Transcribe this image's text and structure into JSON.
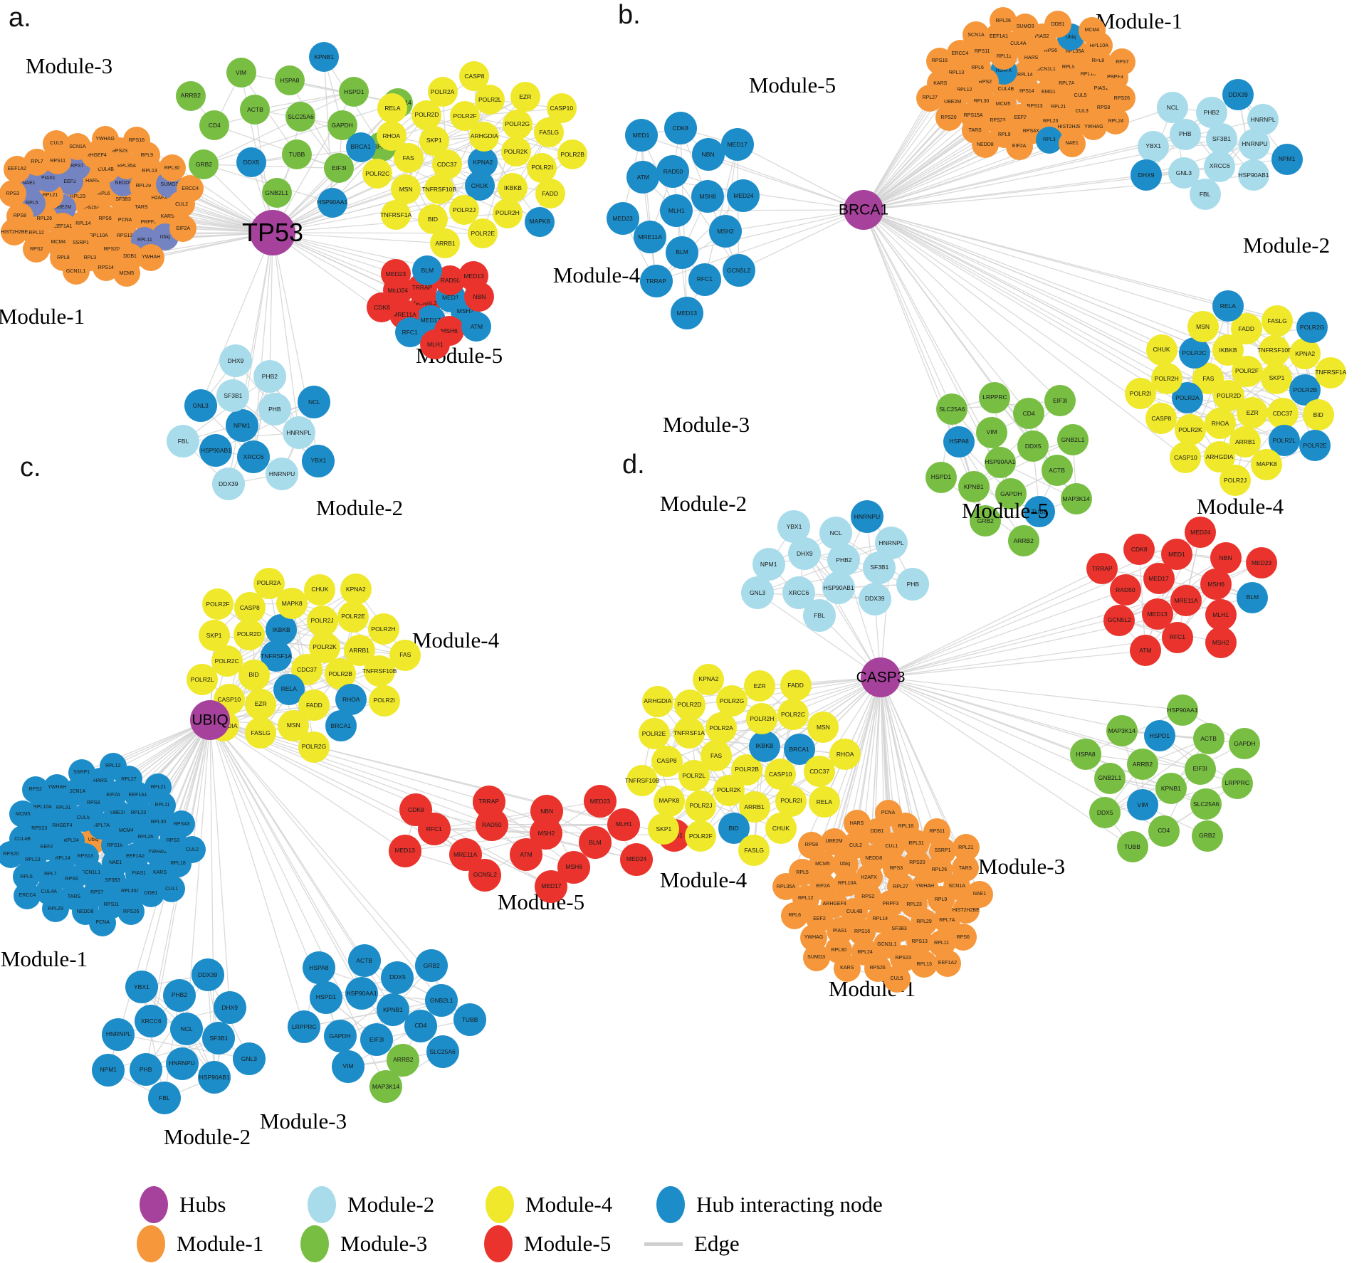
{
  "colors": {
    "hub": "#A6429C",
    "module1": "#F5973A",
    "module2": "#A9DCEB",
    "module3": "#78BE43",
    "module4": "#EFE82B",
    "module5": "#E9332C",
    "hubnode": "#1C8DC9",
    "slate": "#7483C1",
    "edge": "#D3D3D3"
  },
  "node_prefix_legend": {
    "!": "hub-interacting-node-color",
    "~": "slate-blue-color",
    "^": "module1-orange-color"
  },
  "legend": {
    "items": [
      {
        "key": "hub",
        "label": "Hubs"
      },
      {
        "key": "module2",
        "label": "Module-2"
      },
      {
        "key": "module4",
        "label": "Module-4"
      },
      {
        "key": "hubnode",
        "label": "Hub interacting node"
      },
      {
        "key": "module1",
        "label": "Module-1"
      },
      {
        "key": "module3",
        "label": "Module-3"
      },
      {
        "key": "module5",
        "label": "Module-5"
      },
      {
        "key": "edge",
        "label": "Edge"
      }
    ]
  },
  "panels": [
    {
      "id": "a",
      "letter": "a.",
      "hub": "TP53",
      "modules": [
        {
          "key": "m1",
          "name": "Module-1",
          "color": "module1",
          "nodes": [
            "RPS15A",
            "RPL6",
            "RPS6",
            "RPL23",
            "SF3B3",
            "RPL14",
            "HARS",
            "PCNA",
            "~UBE2M",
            "~NEDD8",
            "RPL10A",
            "~EEF2",
            "TARS",
            "EEF1A1",
            "CUL4B",
            "RPS13",
            "RPL21",
            "RPL29",
            "SSRP1",
            "~RPS7",
            "PRPF3",
            "RPL26",
            "RPL35A",
            "RPS20",
            "~PIAS1",
            "H2AFX",
            "MCM4",
            "ARHGEF4",
            "~RPL11",
            "~RPL5",
            "RPL13",
            "RPL3",
            "RPS11",
            "KARS",
            "RPL12",
            "RPS23",
            "DDB1",
            "~NAE1",
            "~SUMO3",
            "RPL8",
            "SCN1A",
            "~Ubiq",
            "RPS8",
            "RPL9",
            "RPS14",
            "RPL7",
            "CUL2",
            "RPS2",
            "YWHAG",
            "YWHAH",
            "RPS3",
            "RPL30",
            "GCN1L1",
            "CUL5",
            "EIF2A",
            "HIST2H2BE",
            "RPS16",
            "MCM5",
            "EEF1A2",
            "ERCC4"
          ]
        },
        {
          "key": "m2",
          "name": "Module-2",
          "color": "module2",
          "nodes": [
            "!NPM1",
            "PHB",
            "!XRCC6",
            "SF3B1",
            "HNRNPL",
            "!HSP90AB1",
            "PHB2",
            "HNRNPU",
            "!GNL3",
            "!NCL",
            "DDX39",
            "DHX9",
            "!YBX1",
            "FBL"
          ]
        },
        {
          "key": "m3",
          "name": "Module-3",
          "color": "module3",
          "nodes": [
            "SLC25A6",
            "TUBB",
            "ACTB",
            "GAPDH",
            "!DDX5",
            "HSPA8",
            "EIF3I",
            "CD4",
            "HSPD1",
            "GNB2L1",
            "VIM",
            "LRPPRC",
            "GRB2",
            "!KPNB1",
            "!HSP90AA1",
            "ARRB2",
            "MAP3K14"
          ]
        },
        {
          "key": "m4",
          "name": "Module-4",
          "color": "module4",
          "nodes": [
            "!KPNA2",
            "CDC37",
            "ARHGDIA",
            "!CHUK",
            "SKP1",
            "POLR2K",
            "TNFRSF10B",
            "POLR2F",
            "IKBKB",
            "FAS",
            "POLR2G",
            "POLR2J",
            "POLR2D",
            "POLR2I",
            "MSN",
            "POLR2L",
            "POLR2H",
            "RHOA",
            "FASLG",
            "BID",
            "POLR2A",
            "FADD",
            "POLR2C",
            "EZR",
            "POLR2E",
            "RELA",
            "POLR2B",
            "TNFRSF1A",
            "CASP8",
            "!MAPK8",
            "!BRCA1",
            "CASP10",
            "ARRB1"
          ]
        },
        {
          "key": "m5",
          "name": "Module-5",
          "color": "module5",
          "nodes": [
            "GCN5L2",
            "!MED1",
            "!MED17",
            "TRRAP",
            "!MSH2",
            "MRE11A",
            "RAD50",
            "MSH6",
            "MED24",
            "NBN",
            "!RFC1",
            "!BLM",
            "!ATM",
            "CDK8",
            "MED13",
            "MLH1",
            "MED23"
          ]
        }
      ]
    },
    {
      "id": "b",
      "letter": "b.",
      "hub": "BRCA1",
      "modules": [
        {
          "key": "m1",
          "name": "Module-1",
          "color": "module1",
          "nodes": [
            "RPS14",
            "RPL14",
            "EMG1",
            "CUL4B",
            "GCN1L1",
            "RPS13",
            "!H2AFX",
            "RPL7A",
            "MCM5",
            "HARS",
            "RPL21",
            "RPS2",
            "RPL5",
            "EEF2",
            "RPL11",
            "CUL5",
            "RPL30",
            "RPS6",
            "RPL23",
            "RPL6",
            "RPL18",
            "RPS23",
            "CUL4A",
            "CUL3",
            "RPL12",
            "RPL35A",
            "RPS4X",
            "RPS11",
            "PIAS1",
            "RPS15A",
            "PIAS2",
            "HIST2H2BE",
            "RPL13",
            "RPL8",
            "RPL9",
            "EEF1A1",
            "RPS8",
            "UBE2M",
            "!Ubiq",
            "!RPL3",
            "ERCC4",
            "PRPF3",
            "TARS",
            "SUMO3",
            "YWHAG",
            "KARS",
            "RPL10A",
            "EIF2A",
            "SCN1A",
            "RPS26",
            "RPS20",
            "DDB1",
            "NAE1",
            "RPS16",
            "RPS7",
            "NEDD8",
            "RPL26",
            "RPL24",
            "RPL27",
            "MCM4"
          ]
        },
        {
          "key": "m2",
          "name": "Module-2",
          "color": "module2",
          "nodes": [
            "SF3B1",
            "XRCC6",
            "PHB",
            "HNRNPU",
            "GNL3",
            "PHB2",
            "HSP90AB1",
            "YBX1",
            "HNRNPL",
            "FBL",
            "NCL",
            "!NPM1",
            "!DHX9",
            "!DDX39"
          ]
        },
        {
          "key": "m3",
          "name": "Module-3",
          "color": "module3",
          "nodes": [
            "HSP90AA1",
            "DDX5",
            "GAPDH",
            "VIM",
            "ACTB",
            "KPNB1",
            "CD4",
            "!TUBB",
            "!HSPA8",
            "GNB2L1",
            "GRB2",
            "LRPPRC",
            "MAP3K14",
            "HSPD1",
            "EIF3I",
            "ARRB2",
            "SLC25A6"
          ]
        },
        {
          "key": "m4",
          "name": "Module-4",
          "color": "module4",
          "nodes": [
            "POLR2D",
            "POLR2F",
            "EZR",
            "FAS",
            "SKP1",
            "RHOA",
            "IKBKB",
            "CDC37",
            "!POLR2A",
            "TNFRSF10B",
            "ARRB1",
            "!POLR2C",
            "!POLR2B",
            "POLR2K",
            "FADD",
            "!POLR2L",
            "POLR2H",
            "KPNA2",
            "ARHGDIA",
            "MSN",
            "BID",
            "CASP8",
            "FASLG",
            "MAPK8",
            "CHUK",
            "TNFRSF1A",
            "CASP10",
            "!RELA",
            "!POLR2E",
            "POLR2I",
            "!POLR2G",
            "POLR2J"
          ]
        },
        {
          "key": "m5",
          "name": "Module-5",
          "color": "module5",
          "nodes": [
            "!MLH1",
            "!MSH6",
            "!BLM",
            "!RAD50",
            "!MSH2",
            "!MRE11A",
            "!NBN",
            "!RFC1",
            "!ATM",
            "!MED24",
            "!TRRAP",
            "!CDK8",
            "!GCN5L2",
            "!MED23",
            "!MED17",
            "!MED13",
            "!MED1"
          ]
        }
      ]
    },
    {
      "id": "c",
      "letter": "c.",
      "hub": "UBIQ",
      "modules": [
        {
          "key": "m1",
          "name": "Module-1",
          "color": "hubnode",
          "nodes": [
            "^Ubiq",
            "RPS16",
            "RPS13",
            "RPL7A",
            "NAE1",
            "RPL24",
            "MCM4",
            "GCN1L1",
            "CUL5",
            "EEF1A2",
            "RPL14",
            "UBE2I",
            "SF3B3",
            "ARHGEF4",
            "RPL26",
            "RPS6",
            "RPS8",
            "PIAS1",
            "EEF2",
            "RPL23",
            "RPS7",
            "RPL31",
            "YWHAG",
            "RPL7",
            "EIF2A",
            "RPL35A",
            "RPS23",
            "RPL30",
            "TARS",
            "SCN1A",
            "KARS",
            "RPL13",
            "EEF1A1",
            "RPS11",
            "RPL10A",
            "RPS3",
            "CUL4A",
            "HARS",
            "DDB1",
            "CUL4B",
            "RPL11",
            "NEDD8",
            "YWHAH",
            "RPL18",
            "RPL6",
            "RPL27",
            "RPS26",
            "MCM5",
            "RPS4X",
            "RPL29",
            "SSRP1",
            "CUL1",
            "RPS20",
            "RPL21",
            "PCNA",
            "RPS2",
            "CUL2",
            "ERCC4",
            "RPL12"
          ]
        },
        {
          "key": "m2",
          "name": "Module-2",
          "color": "module2",
          "nodes": [
            "!NCL",
            "!HNRNPU",
            "!XRCC6",
            "!SF3B1",
            "!PHB",
            "!PHB2",
            "!HSP90AB1",
            "!HNRNPL",
            "!DHX9",
            "!FBL",
            "!YBX1",
            "!GNL3",
            "!NPM1",
            "!DDX39"
          ]
        },
        {
          "key": "m3",
          "name": "Module-3",
          "color": "module3",
          "nodes": [
            "!KPNB1",
            "!EIF3I",
            "!HSP90AA1",
            "!CD4",
            "!GAPDH",
            "!DDX5",
            "ARRB2",
            "!HSPD1",
            "!GNB2L1",
            "!VIM",
            "!ACTB",
            "!SLC25A6",
            "!LRPPRC",
            "!GRB2",
            "MAP3K14",
            "!HSPA8",
            "!TUBB"
          ]
        },
        {
          "key": "m4",
          "name": "Module-4",
          "color": "module4",
          "nodes": [
            "CDC37",
            "!TNFRSF1A",
            "POLR2K",
            "!RELA",
            "!IKBKB",
            "POLR2B",
            "BID",
            "POLR2J",
            "FADD",
            "POLR2D",
            "ARRB1",
            "EZR",
            "MAPK8",
            "!RHOA",
            "POLR2C",
            "POLR2E",
            "MSN",
            "CASP8",
            "TNFRSF10B",
            "CASP10",
            "CHUK",
            "!BRCA1",
            "SKP1",
            "POLR2H",
            "FASLG",
            "POLR2A",
            "POLR2I",
            "POLR2L",
            "KPNA2",
            "POLR2G",
            "POLR2F",
            "FAS",
            "ARHGDIA"
          ]
        },
        {
          "key": "m5",
          "name": "Module-5",
          "color": "module5",
          "nodes": [
            "MSH2",
            "ATM",
            "RAD50",
            "BLM",
            "MRE11A",
            "NBN",
            "MSH6",
            "RFC1",
            "MLH1",
            "GCN5L2",
            "TRRAP",
            "MED24",
            "MED13",
            "MED23",
            "MED17",
            "CDK8",
            "MED1"
          ]
        }
      ]
    },
    {
      "id": "d",
      "letter": "d.",
      "hub": "CASP3",
      "modules": [
        {
          "key": "m1",
          "name": "Module-1",
          "color": "module1",
          "nodes": [
            "PRPF3",
            "RPS2",
            "RPL27",
            "RPL14",
            "H2AFX",
            "RPL23",
            "CUL4B",
            "RPS3",
            "SF3B3",
            "RPL10A",
            "YWHAH",
            "RPS16",
            "NEDD8",
            "RPL29",
            "ARHGEF4",
            "RPS20",
            "GCN1L1",
            "Ubiq",
            "RPL9",
            "PIAS1",
            "CUL1",
            "RPS13",
            "EIF2A",
            "RPL26",
            "RPL24",
            "CUL2",
            "RPL7A",
            "EEF2",
            "RPL31",
            "RPS23",
            "MCM5",
            "SCN1A",
            "RPL30",
            "DDB1",
            "RPL11",
            "RPL12",
            "SSRP1",
            "RPS26",
            "UBE2M",
            "HIST2H2BE",
            "YWHAG",
            "RPL18",
            "RPL13",
            "RPL5",
            "TARS",
            "KARS",
            "HARS",
            "RPS6",
            "RPL6",
            "RPS11",
            "CUL5",
            "RPS8",
            "NAE1",
            "SUMO3",
            "PCNA",
            "EEF1A2",
            "RPL35A",
            "RPL21"
          ]
        },
        {
          "key": "m2",
          "name": "Module-2",
          "color": "module2",
          "nodes": [
            "PHB2",
            "HSP90AB1",
            "DHX9",
            "SF3B1",
            "XRCC6",
            "NCL",
            "DDX39",
            "NPM1",
            "HNRNPL",
            "FBL",
            "YBX1",
            "PHB",
            "GNL3",
            "!HNRNPU"
          ]
        },
        {
          "key": "m3",
          "name": "Module-3",
          "color": "module3",
          "nodes": [
            "KPNB1",
            "ARRB2",
            "EIF3I",
            "!VIM",
            "!HSPD1",
            "SLC25A6",
            "GNB2L1",
            "ACTB",
            "CD4",
            "MAP3K14",
            "LRPPRC",
            "DDX5",
            "HSP90AA1",
            "GRB2",
            "HSPA8",
            "GAPDH",
            "TUBB"
          ]
        },
        {
          "key": "m4",
          "name": "Module-4",
          "color": "module4",
          "nodes": [
            "POLR2B",
            "FAS",
            "!IKBKB",
            "POLR2K",
            "POLR2A",
            "CASP10",
            "POLR2L",
            "POLR2H",
            "ARRB1",
            "TNFRSF1A",
            "!BRCA1",
            "POLR2J",
            "POLR2G",
            "POLR2I",
            "CASP8",
            "POLR2C",
            "!BID",
            "POLR2D",
            "CDC37",
            "MAPK8",
            "EZR",
            "CHUK",
            "POLR2E",
            "MSN",
            "POLR2F",
            "KPNA2",
            "RELA",
            "TNFRSF10B",
            "FADD",
            "FASLG",
            "ARHGDIA",
            "RHOA",
            "SKP1"
          ]
        },
        {
          "key": "m5",
          "name": "Module-5",
          "color": "module5",
          "nodes": [
            "MRE11A",
            "MED17",
            "MSH6",
            "MED13",
            "MED1",
            "MLH1",
            "RAD50",
            "NBN",
            "RFC1",
            "CDK8",
            "!BLM",
            "GCN5L2",
            "MED24",
            "MSH2",
            "TRRAP",
            "MED23",
            "ATM"
          ]
        }
      ]
    }
  ]
}
